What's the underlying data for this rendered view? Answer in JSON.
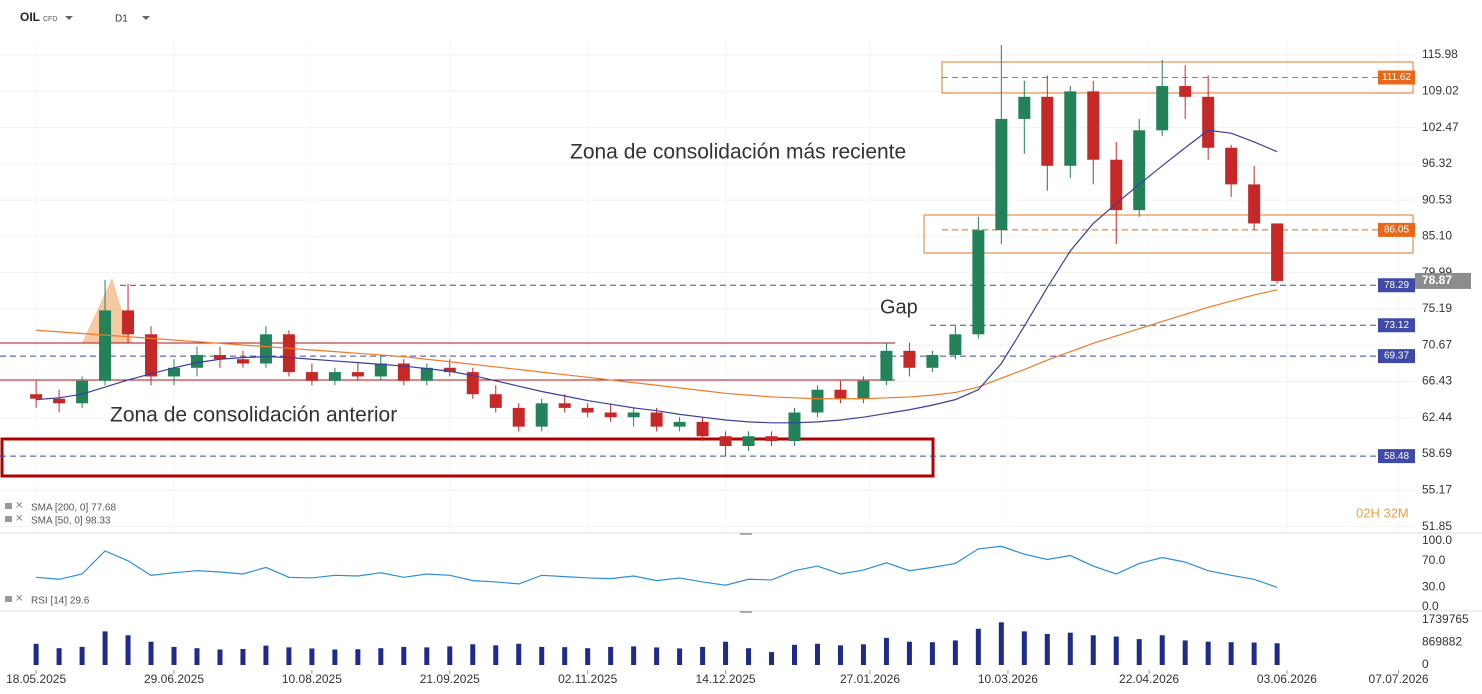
{
  "header": {
    "symbol": "OIL",
    "instrument": "CFD",
    "timeframe": "D1"
  },
  "chart_data": [
    {
      "type": "candlestick",
      "x": [
        "18.05.2025",
        "25.05.2025",
        "01.06.2025",
        "08.06.2025",
        "15.06.2025",
        "22.06.2025",
        "29.06.2025",
        "06.07.2025",
        "13.07.2025",
        "20.07.2025",
        "27.07.2025",
        "03.08.2025",
        "10.08.2025",
        "17.08.2025",
        "24.08.2025",
        "31.08.2025",
        "07.09.2025",
        "14.09.2025",
        "21.09.2025",
        "28.09.2025",
        "05.10.2025",
        "12.10.2025",
        "19.10.2025",
        "26.10.2025",
        "02.11.2025",
        "09.11.2025",
        "16.11.2025",
        "23.11.2025",
        "30.11.2025",
        "07.12.2025",
        "14.12.2025",
        "21.12.2025",
        "28.12.2025",
        "04.01.2026",
        "11.01.2026",
        "18.01.2026",
        "25.01.2026",
        "01.02.2026",
        "08.02.2026",
        "15.02.2026",
        "22.02.2026",
        "01.03.2026",
        "08.03.2026",
        "15.03.2026",
        "22.03.2026",
        "29.03.2026",
        "05.04.2026",
        "12.04.2026",
        "19.04.2026",
        "26.04.2026",
        "03.05.2026",
        "10.05.2026",
        "17.05.2026",
        "24.05.2026",
        "31.05.2026"
      ],
      "open": [
        65,
        64.5,
        64,
        66.5,
        75,
        72,
        67,
        68,
        69.5,
        69,
        68.5,
        72,
        67.5,
        66.5,
        67.5,
        67,
        68.5,
        66.5,
        68,
        67.5,
        65,
        63.5,
        61.5,
        64,
        63.5,
        63,
        62.5,
        63,
        61.5,
        62,
        60.5,
        59.5,
        60.5,
        60,
        63,
        65.5,
        64.5,
        66.5,
        70,
        68,
        69.5,
        72,
        86,
        104,
        108,
        96,
        109,
        97,
        89,
        102,
        110,
        108,
        99,
        93,
        87
      ],
      "high": [
        66.5,
        65.5,
        67,
        79,
        78.5,
        73,
        69,
        70.5,
        70.5,
        70,
        73,
        72.5,
        68.5,
        68,
        68.5,
        69.5,
        69,
        68.5,
        69,
        68,
        66,
        64,
        64.5,
        65,
        64,
        64,
        63.5,
        63.5,
        62.5,
        62.5,
        61,
        61,
        61,
        63.5,
        66,
        66.5,
        67,
        71,
        71,
        70,
        73,
        88,
        118,
        111,
        112,
        110,
        111,
        100,
        104,
        115,
        114,
        112,
        99.5,
        96,
        87
      ],
      "low": [
        63.5,
        63,
        63.5,
        66,
        71,
        66,
        66,
        67,
        68,
        68,
        68,
        67,
        66,
        66,
        66.5,
        66.5,
        66,
        66,
        67,
        64.5,
        63,
        61,
        61,
        63,
        62.5,
        62,
        61.5,
        61,
        61,
        60,
        58.5,
        59,
        59.5,
        59.5,
        62.5,
        64,
        64,
        66,
        67,
        67.5,
        69,
        71.5,
        84,
        98,
        92,
        94,
        93,
        84,
        88,
        101,
        104,
        97,
        91,
        86,
        78.5
      ],
      "close": [
        64.5,
        64,
        66.5,
        75,
        72,
        67,
        68,
        69.5,
        69,
        68.5,
        72,
        67.5,
        66.5,
        67.5,
        67,
        68.5,
        66.5,
        68,
        67.5,
        65,
        63.5,
        61.5,
        64,
        63.5,
        63,
        62.5,
        63,
        61.5,
        62,
        60.5,
        59.5,
        60.5,
        60,
        63,
        65.5,
        64.5,
        66.5,
        70,
        68,
        69.5,
        72,
        86,
        104,
        108,
        96,
        109,
        97,
        89,
        102,
        110,
        108,
        99,
        93,
        87,
        78.87
      ],
      "up_color": "#23825a",
      "down_color": "#c62828",
      "xlim": [
        "07.05.2025",
        "12.07.2026"
      ],
      "xticks": [
        "18.05.2025",
        "29.06.2025",
        "10.08.2025",
        "21.09.2025",
        "02.11.2025",
        "14.12.2025",
        "27.01.2026",
        "10.03.2026",
        "22.04.2026",
        "03.06.2026",
        "07.07.2026"
      ],
      "ylim": [
        51.55,
        119
      ],
      "yticks": [
        115.98,
        109.02,
        102.47,
        96.32,
        90.53,
        {
          "value": 85.1,
          "label": "85.10"
        },
        79.99,
        75.19,
        70.67,
        66.43,
        62.44,
        58.69,
        55.17,
        51.85
      ],
      "log_scale": true,
      "grid": true,
      "last_price": 78.87,
      "countdown": "02H 32M",
      "levels": [
        {
          "value": 111.62,
          "color": "#e8681a"
        },
        {
          "value": 86.05,
          "color": "#e8681a"
        },
        {
          "value": 78.29,
          "color": "#3f4aa8"
        },
        {
          "value": 73.12,
          "color": "#3f4aa8"
        },
        {
          "value": 69.37,
          "color": "#3f4aa8"
        },
        {
          "value": 58.48,
          "color": "#3f4aa8"
        }
      ],
      "annotations": [
        {
          "text": "Zona de consolidación más reciente",
          "color": "#e8601c"
        },
        {
          "text": "Zona de consolidación anterior",
          "color": "#e8601c"
        },
        {
          "text": "Gap",
          "color": "#3b3f9a"
        }
      ],
      "series": [
        {
          "name": "SMA [200, 0] 77.68",
          "color": "#f07a2a",
          "values": [
            72.5,
            72.3,
            72.1,
            71.9,
            71.7,
            71.5,
            71.3,
            71.1,
            70.9,
            70.7,
            70.5,
            70.3,
            70.1,
            69.9,
            69.7,
            69.5,
            69.3,
            69.0,
            68.7,
            68.4,
            68.1,
            67.8,
            67.5,
            67.2,
            66.9,
            66.6,
            66.3,
            66.0,
            65.7,
            65.4,
            65.1,
            64.9,
            64.7,
            64.6,
            64.5,
            64.5,
            64.5,
            64.6,
            64.7,
            64.9,
            65.2,
            65.8,
            66.8,
            67.8,
            68.9,
            69.9,
            70.9,
            71.8,
            72.7,
            73.6,
            74.5,
            75.4,
            76.2,
            77.0,
            77.68
          ]
        },
        {
          "name": "SMA [50, 0] 98.33",
          "color": "#3b3f9a",
          "values": [
            64.4,
            64.6,
            65.0,
            65.8,
            66.6,
            67.3,
            68.0,
            68.6,
            69.0,
            69.2,
            69.3,
            69.2,
            69.0,
            68.8,
            68.6,
            68.4,
            68.2,
            67.9,
            67.6,
            67.1,
            66.5,
            65.9,
            65.3,
            64.8,
            64.3,
            63.9,
            63.5,
            63.2,
            62.8,
            62.5,
            62.2,
            62.0,
            61.9,
            61.9,
            62.0,
            62.2,
            62.5,
            62.9,
            63.3,
            63.8,
            64.4,
            65.5,
            68.5,
            73,
            78,
            83,
            87,
            90,
            93,
            96,
            99,
            102,
            101.5,
            100,
            98.33
          ]
        }
      ]
    },
    {
      "type": "line",
      "series": [
        {
          "name": "RSI [14] 29.6",
          "color": "#2b8fd6",
          "values": [
            45,
            42,
            50,
            85,
            70,
            48,
            52,
            55,
            53,
            50,
            60,
            45,
            44,
            48,
            47,
            52,
            45,
            50,
            48,
            40,
            38,
            35,
            48,
            46,
            44,
            43,
            47,
            40,
            44,
            38,
            33,
            42,
            41,
            55,
            62,
            50,
            56,
            67,
            55,
            60,
            66,
            88,
            92,
            80,
            72,
            78,
            62,
            50,
            66,
            75,
            68,
            55,
            48,
            42,
            29.6
          ]
        }
      ],
      "ylim": [
        0,
        100
      ],
      "yticks": [
        {
          "value": 100,
          "label": "100.0"
        },
        {
          "value": 70,
          "label": "70.0"
        },
        {
          "value": 30,
          "label": "30.0"
        },
        {
          "value": 0,
          "label": "0.0"
        }
      ]
    },
    {
      "type": "bar",
      "color": "#1f2a8a",
      "values": [
        820000,
        650000,
        700000,
        1300000,
        1150000,
        900000,
        700000,
        650000,
        600000,
        620000,
        750000,
        680000,
        640000,
        600000,
        610000,
        650000,
        700000,
        680000,
        720000,
        800000,
        760000,
        820000,
        700000,
        690000,
        650000,
        700000,
        720000,
        680000,
        640000,
        700000,
        900000,
        650000,
        500000,
        780000,
        820000,
        760000,
        800000,
        1050000,
        900000,
        880000,
        950000,
        1400000,
        1650000,
        1300000,
        1200000,
        1250000,
        1150000,
        1100000,
        1000000,
        1150000,
        950000,
        900000,
        880000,
        870000,
        840000
      ],
      "ylim": [
        0,
        1739765
      ],
      "yticks": [
        1739765,
        869882,
        0
      ]
    }
  ]
}
